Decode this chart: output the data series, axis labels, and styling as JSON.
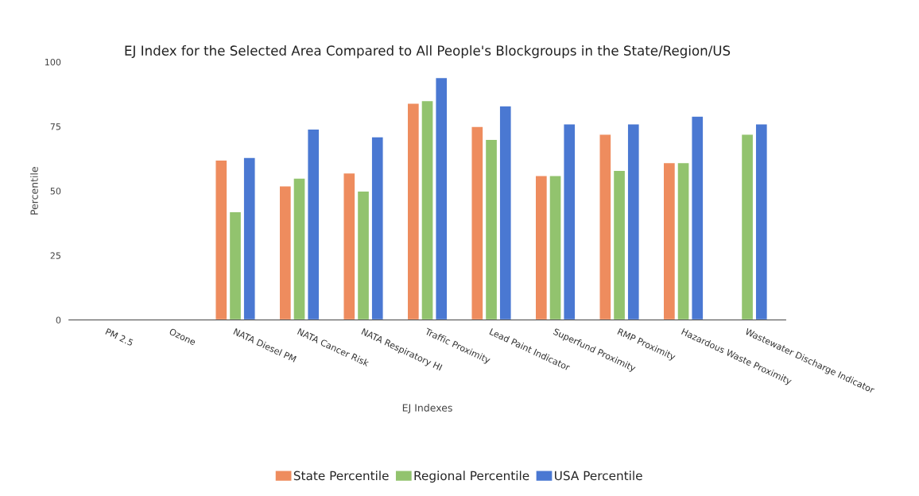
{
  "chart_data": {
    "type": "bar",
    "title": "EJ Index for the Selected Area Compared to All People's Blockgroups in the State/Region/US",
    "xlabel": "EJ Indexes",
    "ylabel": "Percentile",
    "categories": [
      "PM 2.5",
      "Ozone",
      "NATA Diesel PM",
      "NATA Cancer Risk",
      "NATA Respiratory HI",
      "Traffic Proximity",
      "Lead Paint Indicator",
      "Superfund Proximity",
      "RMP Proximity",
      "Hazardous Waste Proximity",
      "Wastewater Discharge Indicator"
    ],
    "series": [
      {
        "name": "State Percentile",
        "color": "#ee8c5e",
        "values": [
          null,
          null,
          62,
          52,
          57,
          84,
          75,
          56,
          72,
          61,
          null
        ]
      },
      {
        "name": "Regional Percentile",
        "color": "#92c36e",
        "values": [
          null,
          null,
          42,
          55,
          50,
          85,
          70,
          56,
          58,
          61,
          72
        ]
      },
      {
        "name": "USA Percentile",
        "color": "#4a78d2",
        "values": [
          null,
          null,
          63,
          74,
          71,
          94,
          83,
          76,
          76,
          79,
          76
        ]
      }
    ],
    "ylim": [
      0,
      100
    ],
    "yticks": [
      0,
      25,
      50,
      75,
      100
    ],
    "grid": false,
    "legend": "bottom"
  }
}
